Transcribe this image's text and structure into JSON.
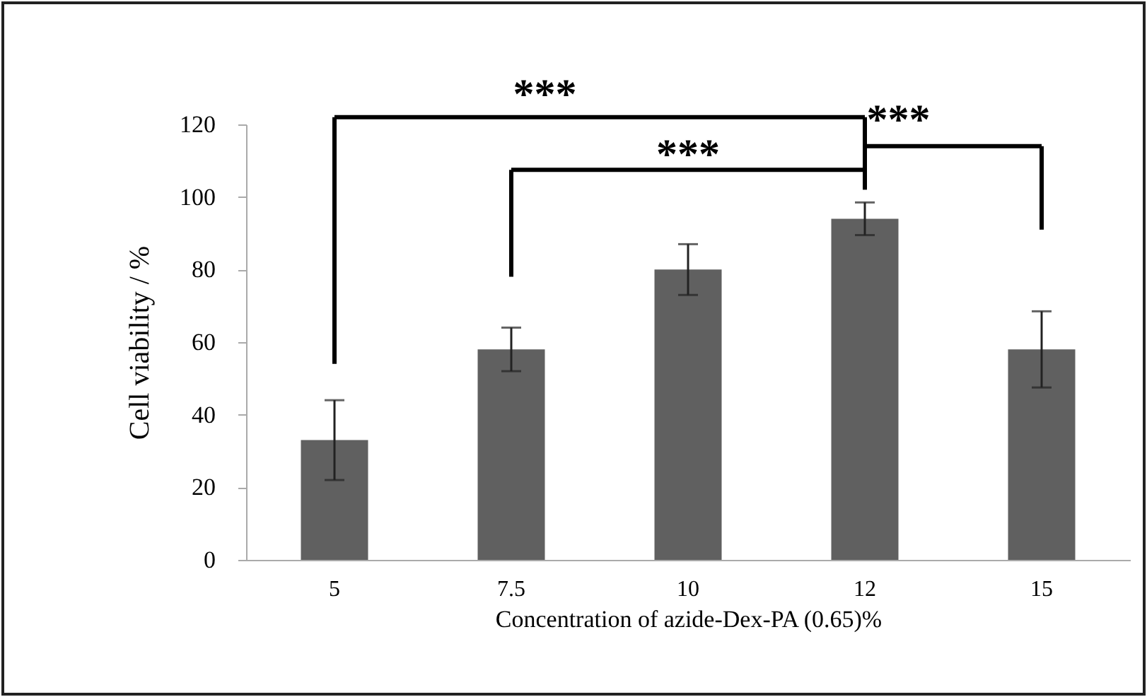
{
  "chart_data": {
    "type": "bar",
    "xlabel": "Concentration of azide-Dex-PA  (0.65)%",
    "ylabel": "Cell viability / %",
    "categories": [
      "5",
      "7.5",
      "10",
      "12",
      "15"
    ],
    "values": [
      33,
      58,
      80,
      94,
      58
    ],
    "errors": [
      11,
      6,
      7,
      4.5,
      10.5
    ],
    "color": "#606060",
    "ylim": [
      0,
      120
    ],
    "yticks": [
      0,
      20,
      40,
      60,
      80,
      100,
      120
    ],
    "grid": false,
    "annotations": [
      "***",
      "***",
      "***"
    ]
  }
}
